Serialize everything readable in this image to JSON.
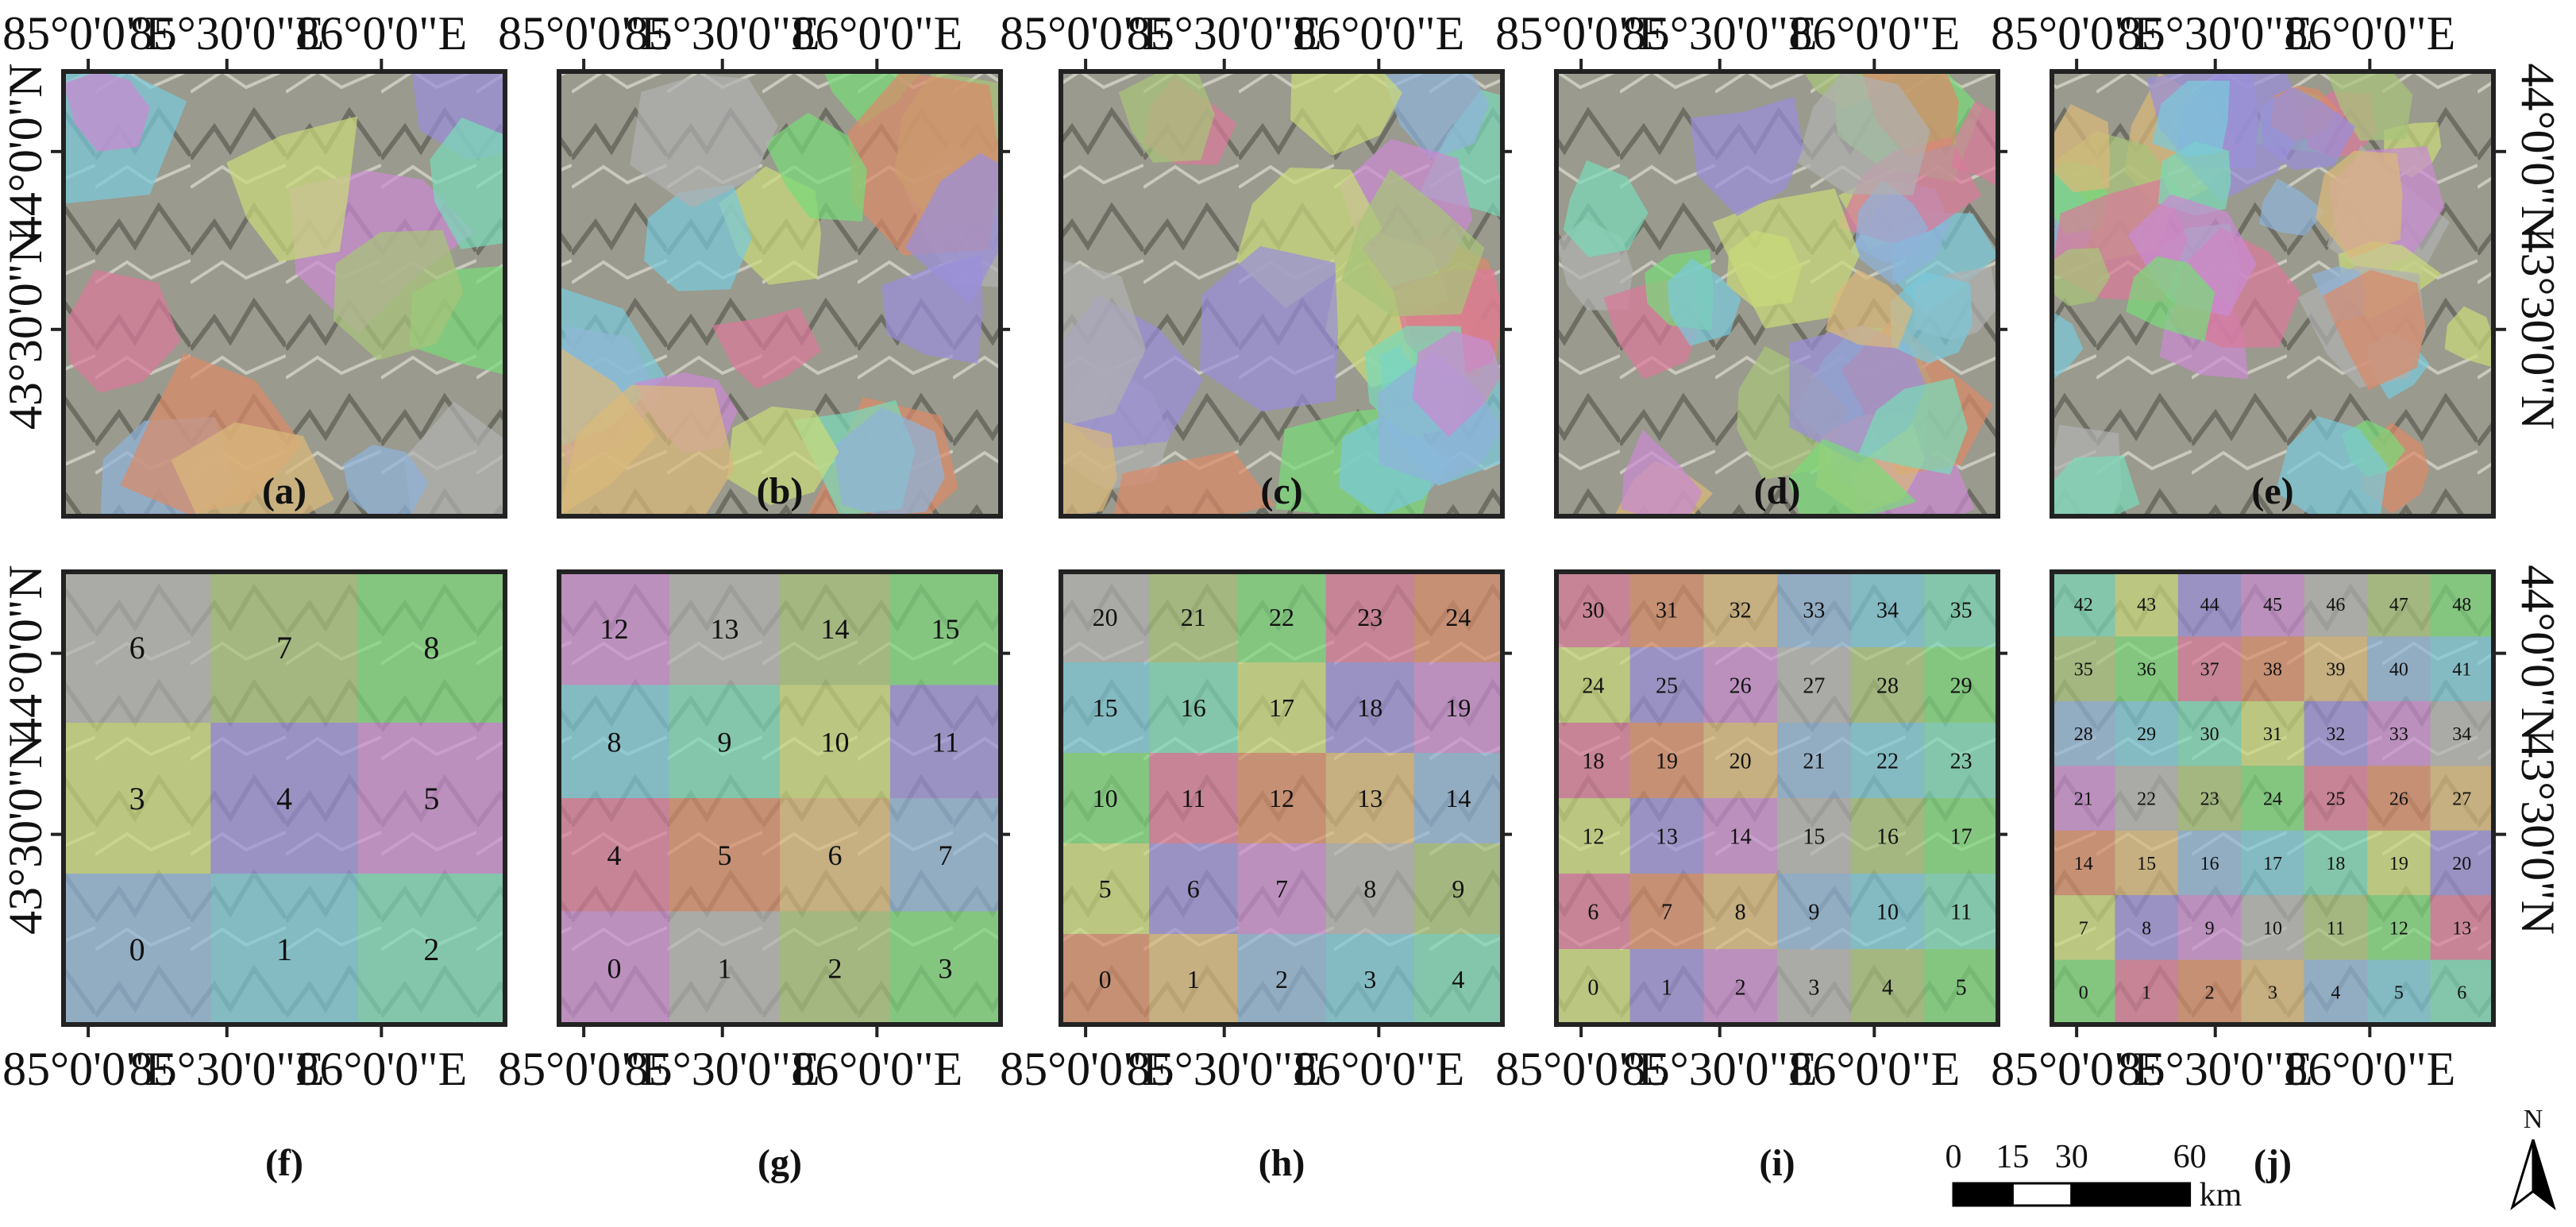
{
  "lon_ticks": [
    "85°0'0\"E",
    "85°30'0\"E",
    "86°0'0\"E"
  ],
  "lat_ticks": [
    "44°0'0\"N",
    "43°30'0\"N"
  ],
  "top_panels": [
    {
      "label": "(a)"
    },
    {
      "label": "(b)"
    },
    {
      "label": "(c)"
    },
    {
      "label": "(d)"
    },
    {
      "label": "(e)"
    }
  ],
  "grid_panels": [
    {
      "label": "(f)",
      "cols": 3,
      "rows": 3
    },
    {
      "label": "(g)",
      "cols": 4,
      "rows": 4
    },
    {
      "label": "(h)",
      "cols": 5,
      "rows": 5
    },
    {
      "label": "(i)",
      "cols": 6,
      "rows": 6
    },
    {
      "label": "(j)",
      "cols": 7,
      "rows": 7
    }
  ],
  "scale_bar": {
    "labels": [
      "0",
      "15",
      "30",
      "60"
    ],
    "unit": "km"
  },
  "north_arrow": "N",
  "palette": [
    "#8fb3d9",
    "#c98bd1",
    "#d98b6a",
    "#c9d97a",
    "#7ad97a",
    "#7ac9d9",
    "#b0b0b0",
    "#d9b87a",
    "#9a8fd9",
    "#d97a9a",
    "#7ad9b8",
    "#a8c37a"
  ]
}
